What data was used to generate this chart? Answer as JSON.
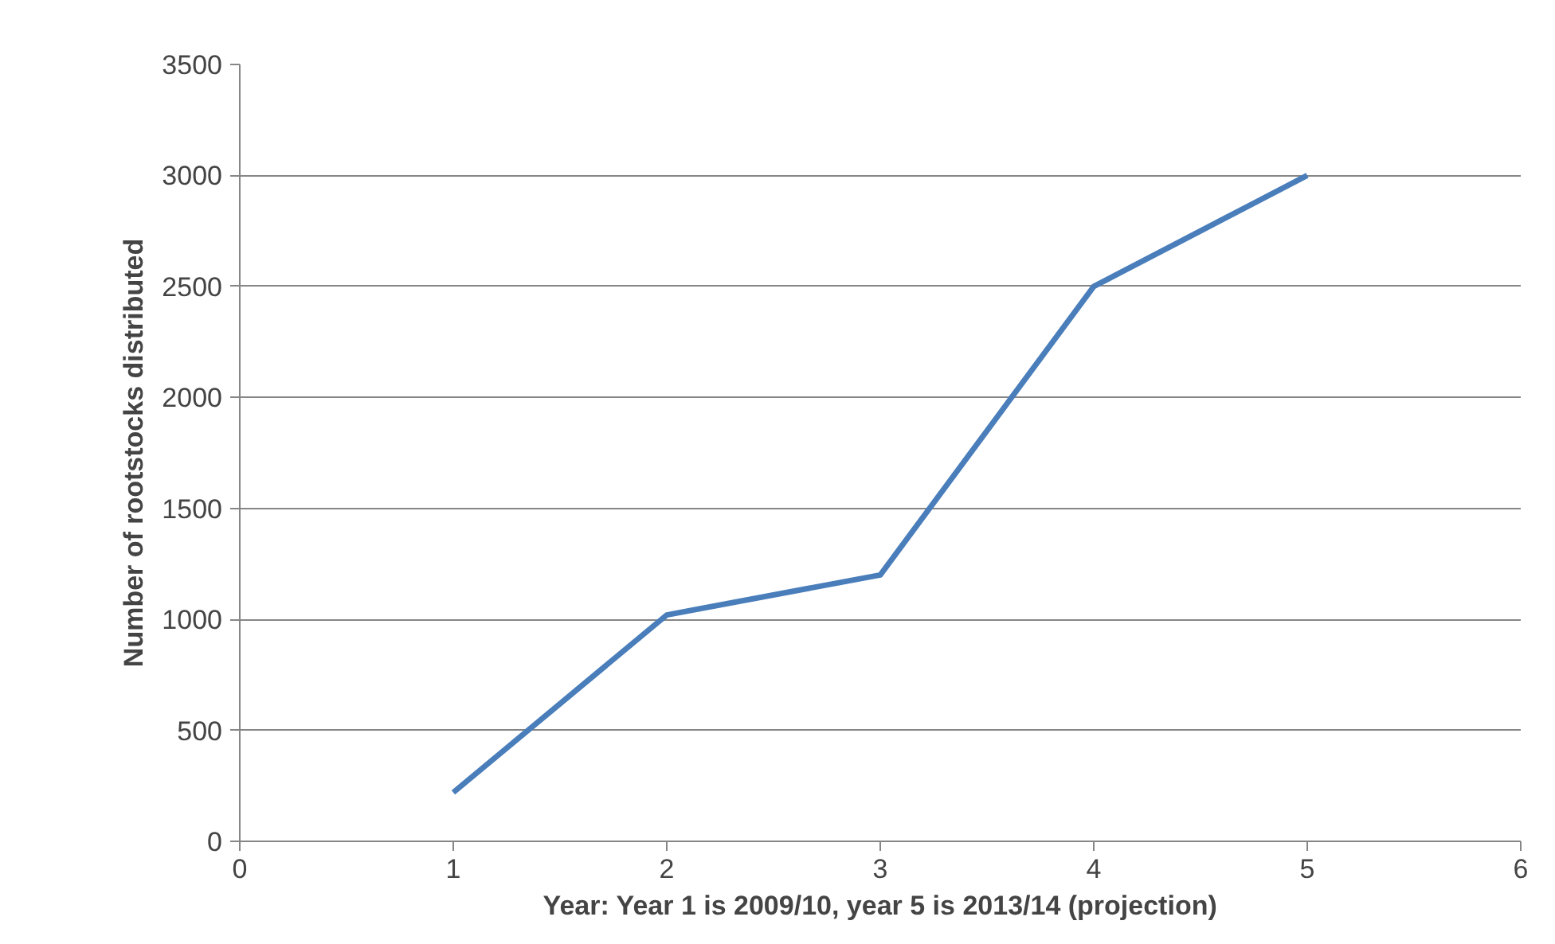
{
  "chart_data": {
    "type": "line",
    "xlabel": "Year: Year 1 is 2009/10, year 5 is 2013/14 (projection)",
    "ylabel": "Number of rootstocks distributed",
    "x": [
      1,
      2,
      3,
      4,
      5
    ],
    "series": [
      {
        "color": "#4a7ebb",
        "values": [
          220,
          1020,
          1200,
          2500,
          3000
        ]
      }
    ],
    "xlim": [
      0,
      6
    ],
    "xticks": [
      0,
      1,
      2,
      3,
      4,
      5,
      6
    ],
    "ylim": [
      0,
      3500
    ],
    "yticks": [
      0,
      500,
      1000,
      1500,
      2000,
      2500,
      3000,
      3500
    ],
    "grid": "y",
    "marker": "none",
    "line_style": "solid"
  }
}
